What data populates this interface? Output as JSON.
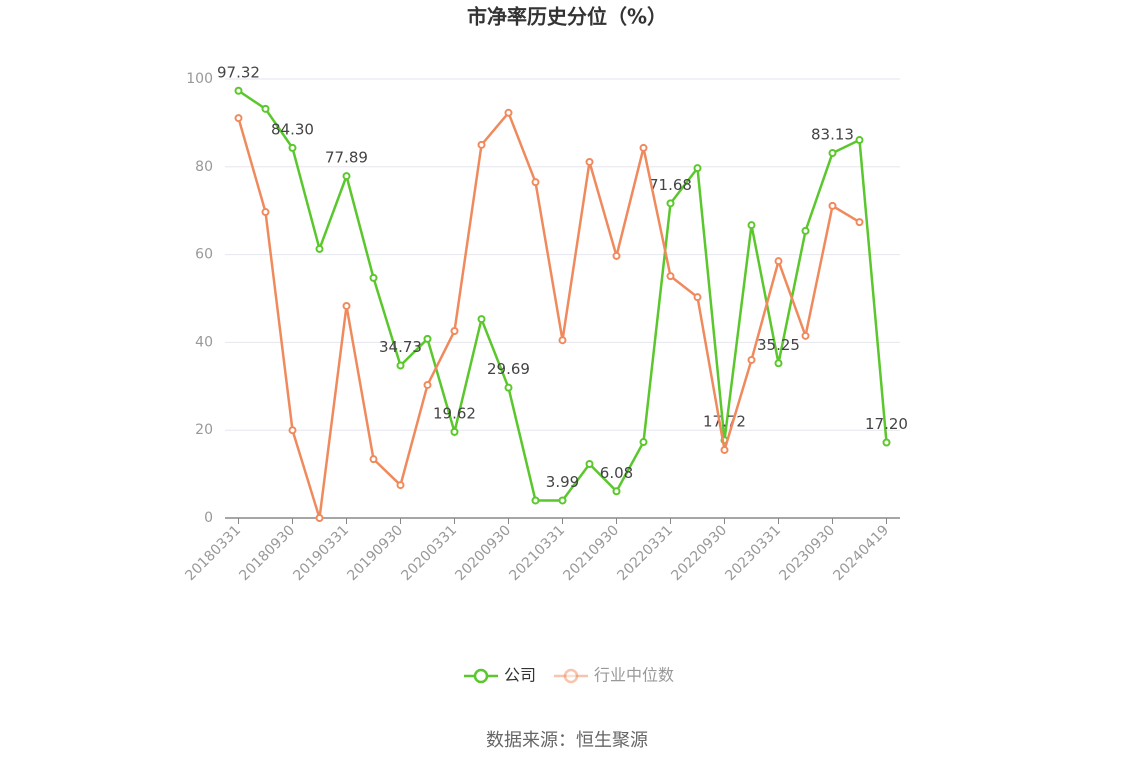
{
  "chart_data": {
    "type": "line",
    "title": "市净率历史分位（%）",
    "source": "数据来源：恒生聚源",
    "categories": [
      "20180331",
      null,
      "20180930",
      null,
      "20190331",
      null,
      "20190930",
      null,
      "20200331",
      null,
      "20200930",
      null,
      "20210331",
      null,
      "20210930",
      null,
      "20220331",
      null,
      "20220930",
      null,
      "20230331",
      null,
      "20230930",
      null,
      "20240419"
    ],
    "series": [
      {
        "name": "公司",
        "color": "#5ac72c",
        "values": [
          97.32,
          93.2,
          84.3,
          61.3,
          77.89,
          54.7,
          34.73,
          40.8,
          19.62,
          45.3,
          29.69,
          4.0,
          3.99,
          12.3,
          6.08,
          17.3,
          71.68,
          79.7,
          17.72,
          66.7,
          35.25,
          65.4,
          83.13,
          86.1,
          17.2
        ],
        "value_labels": [
          "97.32",
          null,
          "84.30",
          null,
          "77.89",
          null,
          "34.73",
          null,
          "19.62",
          null,
          "29.69",
          null,
          "3.99",
          null,
          "6.08",
          null,
          "71.68",
          null,
          "17.72",
          null,
          "35.25",
          null,
          "83.13",
          null,
          "17.20"
        ]
      },
      {
        "name": "行业中位数",
        "color": "#f08a5d",
        "values": [
          91.1,
          69.7,
          20.0,
          0,
          48.3,
          13.4,
          7.5,
          30.3,
          42.6,
          85.0,
          92.3,
          76.5,
          40.5,
          81.1,
          59.7,
          84.3,
          55.1,
          50.3,
          15.5,
          36.0,
          58.5,
          41.5,
          71.1,
          67.4,
          null
        ]
      }
    ],
    "ylim": [
      0,
      100
    ],
    "yticks": [
      0,
      20,
      40,
      60,
      80,
      100
    ],
    "grid": true,
    "legend": "bottom"
  }
}
